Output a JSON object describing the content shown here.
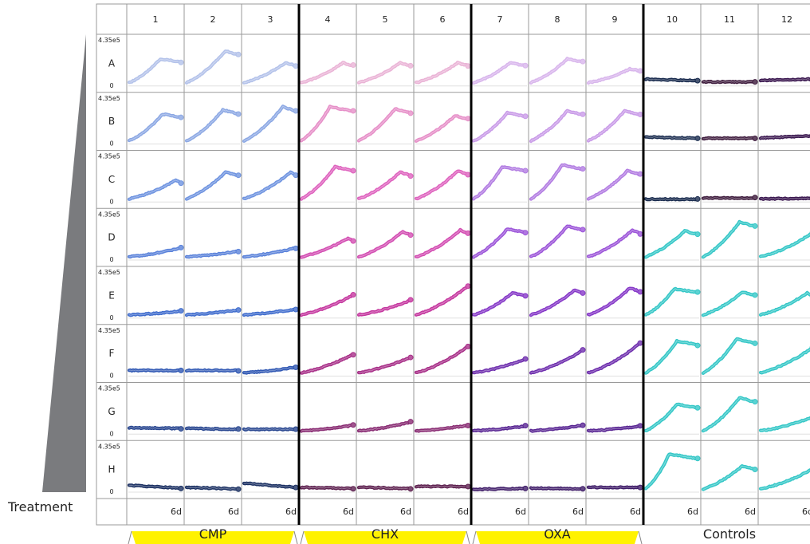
{
  "chart_data": {
    "type": "line",
    "title": "",
    "columns": [
      "1",
      "2",
      "3",
      "4",
      "5",
      "6",
      "7",
      "8",
      "9",
      "10",
      "11",
      "12"
    ],
    "rows": [
      "A",
      "B",
      "C",
      "D",
      "E",
      "F",
      "G",
      "H"
    ],
    "y_max_label": "4.35e5",
    "y_min_label": "0",
    "ylim": [
      0,
      435000
    ],
    "x_end_label": "6d",
    "xlim": [
      0,
      6
    ],
    "treatment_label": "Treatment",
    "groups": [
      {
        "label": "CMP",
        "columns": [
          "1",
          "2",
          "3"
        ],
        "highlight": "#fff200"
      },
      {
        "label": "CHX",
        "columns": [
          "4",
          "5",
          "6"
        ],
        "highlight": "#fff200"
      },
      {
        "label": "OXA",
        "columns": [
          "7",
          "8",
          "9"
        ],
        "highlight": "#fff200"
      },
      {
        "label": "Controls",
        "columns": [
          "10",
          "11",
          "12"
        ],
        "highlight": "#ffffff"
      }
    ],
    "row_colors": {
      "CMP": [
        "#b3c2ea",
        "#8ca8e4",
        "#6e93e0",
        "#5a82da",
        "#3f6ccd",
        "#2f57b3",
        "#27458f",
        "#1c3163"
      ],
      "CHX": [
        "#eab3d6",
        "#e68fc8",
        "#de62be",
        "#d34db2",
        "#c5379f",
        "#a82f88",
        "#882a72",
        "#5e2150"
      ],
      "OXA": [
        "#d8b5ec",
        "#c99be8",
        "#b27ce2",
        "#9c55d9",
        "#8638c8",
        "#6f2fae",
        "#592693",
        "#3f1c68"
      ],
      "Controls": {
        "A": [
          "#1a2c4f",
          "#3d1a3c",
          "#3b1850"
        ],
        "B": [
          "#1a2c4f",
          "#3d1a3c",
          "#3b1850"
        ],
        "C": [
          "#1a2c4f",
          "#3d1a3c",
          "#3b1850"
        ],
        "other": "#35c7c7"
      }
    },
    "wells": {
      "A": [
        {
          "shape": "peak",
          "peak": 0.65,
          "at": 0.6
        },
        {
          "shape": "peak",
          "peak": 0.85,
          "at": 0.75
        },
        {
          "shape": "peak",
          "peak": 0.55,
          "at": 0.8
        },
        {
          "shape": "peak",
          "peak": 0.55,
          "at": 0.8
        },
        {
          "shape": "peak",
          "peak": 0.55,
          "at": 0.8
        },
        {
          "shape": "peak",
          "peak": 0.55,
          "at": 0.8
        },
        {
          "shape": "peak",
          "peak": 0.55,
          "at": 0.7
        },
        {
          "shape": "peak",
          "peak": 0.65,
          "at": 0.7
        },
        {
          "shape": "peak",
          "peak": 0.4,
          "at": 0.8
        },
        {
          "shape": "flat",
          "level": 0.15,
          "trend": -0.04
        },
        {
          "shape": "flat",
          "level": 0.08,
          "trend": 0.0
        },
        {
          "shape": "flat",
          "level": 0.12,
          "trend": 0.03
        }
      ],
      "B": [
        {
          "shape": "peak",
          "peak": 0.72,
          "at": 0.65
        },
        {
          "shape": "peak",
          "peak": 0.82,
          "at": 0.7
        },
        {
          "shape": "peak",
          "peak": 0.9,
          "at": 0.75
        },
        {
          "shape": "peak",
          "peak": 0.9,
          "at": 0.55
        },
        {
          "shape": "peak",
          "peak": 0.85,
          "at": 0.7
        },
        {
          "shape": "peak",
          "peak": 0.68,
          "at": 0.75
        },
        {
          "shape": "peak",
          "peak": 0.75,
          "at": 0.65
        },
        {
          "shape": "peak",
          "peak": 0.8,
          "at": 0.7
        },
        {
          "shape": "peak",
          "peak": 0.8,
          "at": 0.7
        },
        {
          "shape": "flat",
          "level": 0.15,
          "trend": -0.03
        },
        {
          "shape": "flat",
          "level": 0.12,
          "trend": 0.0
        },
        {
          "shape": "flat",
          "level": 0.13,
          "trend": 0.05
        }
      ],
      "C": [
        {
          "shape": "rise",
          "peak": 0.52,
          "at": 0.9
        },
        {
          "shape": "peak",
          "peak": 0.72,
          "at": 0.75
        },
        {
          "shape": "rise",
          "peak": 0.72,
          "at": 0.9
        },
        {
          "shape": "peak",
          "peak": 0.85,
          "at": 0.65
        },
        {
          "shape": "peak",
          "peak": 0.72,
          "at": 0.8
        },
        {
          "shape": "peak",
          "peak": 0.75,
          "at": 0.8
        },
        {
          "shape": "peak",
          "peak": 0.85,
          "at": 0.55
        },
        {
          "shape": "peak",
          "peak": 0.9,
          "at": 0.6
        },
        {
          "shape": "peak",
          "peak": 0.75,
          "at": 0.75
        },
        {
          "shape": "flat",
          "level": 0.05,
          "trend": 0.0
        },
        {
          "shape": "flat",
          "level": 0.08,
          "trend": 0.0
        },
        {
          "shape": "flat",
          "level": 0.06,
          "trend": 0.01
        }
      ],
      "D": [
        {
          "shape": "rise",
          "peak": 0.28,
          "at": 1.0
        },
        {
          "shape": "rise",
          "peak": 0.2,
          "at": 1.0
        },
        {
          "shape": "rise",
          "peak": 0.28,
          "at": 1.0
        },
        {
          "shape": "rise",
          "peak": 0.52,
          "at": 0.9
        },
        {
          "shape": "peak",
          "peak": 0.68,
          "at": 0.85
        },
        {
          "shape": "peak",
          "peak": 0.72,
          "at": 0.85
        },
        {
          "shape": "peak",
          "peak": 0.75,
          "at": 0.65
        },
        {
          "shape": "peak",
          "peak": 0.82,
          "at": 0.7
        },
        {
          "shape": "peak",
          "peak": 0.72,
          "at": 0.85
        },
        {
          "shape": "peak",
          "peak": 0.7,
          "at": 0.75
        },
        {
          "shape": "peak",
          "peak": 0.92,
          "at": 0.7
        },
        {
          "shape": "rise",
          "peak": 0.65,
          "at": 1.0
        }
      ],
      "E": [
        {
          "shape": "rise",
          "peak": 0.15,
          "at": 1.0
        },
        {
          "shape": "rise",
          "peak": 0.18,
          "at": 1.0
        },
        {
          "shape": "rise",
          "peak": 0.2,
          "at": 1.0
        },
        {
          "shape": "rise",
          "peak": 0.55,
          "at": 1.0
        },
        {
          "shape": "rise",
          "peak": 0.42,
          "at": 1.0
        },
        {
          "shape": "rise",
          "peak": 0.78,
          "at": 1.0
        },
        {
          "shape": "peak",
          "peak": 0.6,
          "at": 0.75
        },
        {
          "shape": "peak",
          "peak": 0.68,
          "at": 0.85
        },
        {
          "shape": "peak",
          "peak": 0.72,
          "at": 0.8
        },
        {
          "shape": "peak",
          "peak": 0.7,
          "at": 0.55
        },
        {
          "shape": "peak",
          "peak": 0.62,
          "at": 0.75
        },
        {
          "shape": "peak",
          "peak": 0.6,
          "at": 0.9
        }
      ],
      "F": [
        {
          "shape": "flat",
          "level": 0.12,
          "trend": 0.0
        },
        {
          "shape": "flat",
          "level": 0.12,
          "trend": 0.0
        },
        {
          "shape": "rise",
          "peak": 0.2,
          "at": 1.0
        },
        {
          "shape": "rise",
          "peak": 0.52,
          "at": 1.0
        },
        {
          "shape": "rise",
          "peak": 0.45,
          "at": 1.0
        },
        {
          "shape": "rise",
          "peak": 0.72,
          "at": 1.0
        },
        {
          "shape": "rise",
          "peak": 0.4,
          "at": 1.0
        },
        {
          "shape": "rise",
          "peak": 0.62,
          "at": 1.0
        },
        {
          "shape": "rise",
          "peak": 0.8,
          "at": 1.0
        },
        {
          "shape": "peak",
          "peak": 0.85,
          "at": 0.6
        },
        {
          "shape": "peak",
          "peak": 0.9,
          "at": 0.65
        },
        {
          "shape": "rise",
          "peak": 0.68,
          "at": 1.0
        }
      ],
      "G": [
        {
          "shape": "flat",
          "level": 0.14,
          "trend": -0.02
        },
        {
          "shape": "flat",
          "level": 0.12,
          "trend": -0.02
        },
        {
          "shape": "flat",
          "level": 0.1,
          "trend": 0.0
        },
        {
          "shape": "rise",
          "peak": 0.2,
          "at": 1.0
        },
        {
          "shape": "rise",
          "peak": 0.28,
          "at": 1.0
        },
        {
          "shape": "rise",
          "peak": 0.2,
          "at": 1.0
        },
        {
          "shape": "rise",
          "peak": 0.18,
          "at": 1.0
        },
        {
          "shape": "rise",
          "peak": 0.2,
          "at": 1.0
        },
        {
          "shape": "rise",
          "peak": 0.18,
          "at": 1.0
        },
        {
          "shape": "peak",
          "peak": 0.72,
          "at": 0.6
        },
        {
          "shape": "peak",
          "peak": 0.88,
          "at": 0.7
        },
        {
          "shape": "rise",
          "peak": 0.4,
          "at": 1.0
        }
      ],
      "H": [
        {
          "shape": "flat",
          "level": 0.15,
          "trend": -0.07
        },
        {
          "shape": "flat",
          "level": 0.1,
          "trend": -0.04
        },
        {
          "shape": "flat",
          "level": 0.2,
          "trend": -0.1
        },
        {
          "shape": "flat",
          "level": 0.1,
          "trend": -0.03
        },
        {
          "shape": "flat",
          "level": 0.1,
          "trend": -0.03
        },
        {
          "shape": "flat",
          "level": 0.12,
          "trend": 0.0
        },
        {
          "shape": "flat",
          "level": 0.05,
          "trend": 0.02
        },
        {
          "shape": "flat",
          "level": 0.08,
          "trend": -0.02
        },
        {
          "shape": "flat",
          "level": 0.1,
          "trend": 0.0
        },
        {
          "shape": "peak",
          "peak": 0.92,
          "at": 0.45
        },
        {
          "shape": "peak",
          "peak": 0.62,
          "at": 0.75
        },
        {
          "shape": "rise",
          "peak": 0.55,
          "at": 1.0
        }
      ]
    }
  }
}
